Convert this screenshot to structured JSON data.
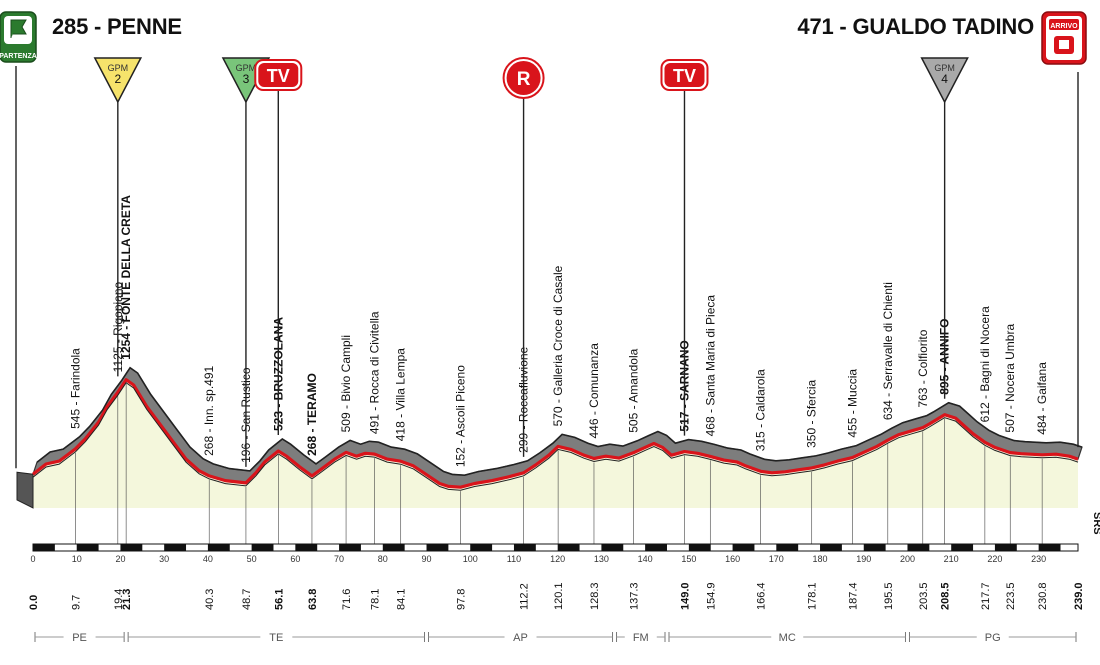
{
  "header": {
    "start_title": "285 - PENNE",
    "finish_title": "471 - GUALDO TADINO",
    "start_badge": "PARTENZA",
    "finish_badge": "ARRIVO"
  },
  "colors": {
    "road": "#d9141b",
    "profile_fill": "#f4f7dc",
    "profile_band": "#7d7d7d",
    "axis": "#111111",
    "gpm2": "#f6e36b",
    "gpm3": "#79c57a",
    "gpm4": "#a9a9a9",
    "marker_red": "#d9141b"
  },
  "markers": [
    {
      "type": "GPM",
      "label": "GPM",
      "number": "2",
      "km": 19.4,
      "icon": "gpm-triangle-yellow"
    },
    {
      "type": "GPM",
      "label": "GPM",
      "number": "3",
      "km": 48.7,
      "icon": "gpm-triangle-green"
    },
    {
      "type": "TV",
      "label": "TV",
      "km": 56.1,
      "icon": "tv-badge"
    },
    {
      "type": "R",
      "label": "R",
      "km": 112.2,
      "icon": "feed-zone-circle"
    },
    {
      "type": "TV",
      "label": "TV",
      "km": 149.0,
      "icon": "tv-badge"
    },
    {
      "type": "GPM",
      "label": "GPM",
      "number": "4",
      "km": 208.5,
      "icon": "gpm-triangle-grey"
    }
  ],
  "waypoints": [
    {
      "km": 9.7,
      "alt": 545,
      "name": "Farindola",
      "bold": false
    },
    {
      "km": 19.4,
      "alt": 1125,
      "name": "Rigopiano",
      "bold": false
    },
    {
      "km": 21.3,
      "alt": 1254,
      "name": "FONTE DELLA CRETA",
      "bold": true
    },
    {
      "km": 40.3,
      "alt": 268,
      "name": "Inn. sp.491",
      "bold": false
    },
    {
      "km": 48.7,
      "alt": 196,
      "name": "San Rustico",
      "bold": false
    },
    {
      "km": 56.1,
      "alt": 523,
      "name": "BRUZZOLANA",
      "bold": true
    },
    {
      "km": 63.8,
      "alt": 268,
      "name": "TERAMO",
      "bold": true
    },
    {
      "km": 71.6,
      "alt": 509,
      "name": "Bivio Campli",
      "bold": false
    },
    {
      "km": 78.1,
      "alt": 491,
      "name": "Rocca di Civitella",
      "bold": false
    },
    {
      "km": 84.1,
      "alt": 418,
      "name": "Villa Lempa",
      "bold": false
    },
    {
      "km": 97.8,
      "alt": 152,
      "name": "Ascoli Piceno",
      "bold": false
    },
    {
      "km": 112.2,
      "alt": 299,
      "name": "Roccafluvione",
      "bold": false
    },
    {
      "km": 120.1,
      "alt": 570,
      "name": "Galleria Croce di Casale",
      "bold": false
    },
    {
      "km": 128.3,
      "alt": 446,
      "name": "Comunanza",
      "bold": false
    },
    {
      "km": 137.3,
      "alt": 505,
      "name": "Amandola",
      "bold": false
    },
    {
      "km": 149.0,
      "alt": 517,
      "name": "SARNANO",
      "bold": true
    },
    {
      "km": 154.9,
      "alt": 468,
      "name": "Santa Maria di Pieca",
      "bold": false
    },
    {
      "km": 166.4,
      "alt": 315,
      "name": "Caldarola",
      "bold": false
    },
    {
      "km": 178.1,
      "alt": 350,
      "name": "Sfercia",
      "bold": false
    },
    {
      "km": 187.4,
      "alt": 455,
      "name": "Muccia",
      "bold": false
    },
    {
      "km": 195.5,
      "alt": 634,
      "name": "Serravalle di Chienti",
      "bold": false
    },
    {
      "km": 203.5,
      "alt": 763,
      "name": "Colfiorito",
      "bold": false
    },
    {
      "km": 208.5,
      "alt": 895,
      "name": "ANNIFO",
      "bold": true
    },
    {
      "km": 217.7,
      "alt": 612,
      "name": "Bagni di Nocera",
      "bold": false
    },
    {
      "km": 223.5,
      "alt": 507,
      "name": "Nocera Umbra",
      "bold": false
    },
    {
      "km": 230.8,
      "alt": 484,
      "name": "Gaifana",
      "bold": false
    }
  ],
  "km_labels": [
    {
      "km": 0.0,
      "text": "0.0",
      "bold": true
    },
    {
      "km": 9.7,
      "text": "9.7",
      "bold": false
    },
    {
      "km": 19.4,
      "text": "19.4",
      "bold": false
    },
    {
      "km": 21.3,
      "text": "21.3",
      "bold": true
    },
    {
      "km": 40.3,
      "text": "40.3",
      "bold": false
    },
    {
      "km": 48.7,
      "text": "48.7",
      "bold": false
    },
    {
      "km": 56.1,
      "text": "56.1",
      "bold": true
    },
    {
      "km": 63.8,
      "text": "63.8",
      "bold": true
    },
    {
      "km": 71.6,
      "text": "71.6",
      "bold": false
    },
    {
      "km": 78.1,
      "text": "78.1",
      "bold": false
    },
    {
      "km": 84.1,
      "text": "84.1",
      "bold": false
    },
    {
      "km": 97.8,
      "text": "97.8",
      "bold": false
    },
    {
      "km": 112.2,
      "text": "112.2",
      "bold": false
    },
    {
      "km": 120.1,
      "text": "120.1",
      "bold": false
    },
    {
      "km": 128.3,
      "text": "128.3",
      "bold": false
    },
    {
      "km": 137.3,
      "text": "137.3",
      "bold": false
    },
    {
      "km": 149.0,
      "text": "149.0",
      "bold": true
    },
    {
      "km": 154.9,
      "text": "154.9",
      "bold": false
    },
    {
      "km": 166.4,
      "text": "166.4",
      "bold": false
    },
    {
      "km": 178.1,
      "text": "178.1",
      "bold": false
    },
    {
      "km": 187.4,
      "text": "187.4",
      "bold": false
    },
    {
      "km": 195.5,
      "text": "195.5",
      "bold": false
    },
    {
      "km": 203.5,
      "text": "203.5",
      "bold": false
    },
    {
      "km": 208.5,
      "text": "208.5",
      "bold": true
    },
    {
      "km": 217.7,
      "text": "217.7",
      "bold": false
    },
    {
      "km": 223.5,
      "text": "223.5",
      "bold": false
    },
    {
      "km": 230.8,
      "text": "230.8",
      "bold": false
    },
    {
      "km": 239.0,
      "text": "239.0",
      "bold": true
    }
  ],
  "axis_ticks": [
    "0",
    "10",
    "20",
    "30",
    "40",
    "50",
    "60",
    "70",
    "80",
    "90",
    "100",
    "110",
    "120",
    "130",
    "140",
    "150",
    "160",
    "170",
    "180",
    "190",
    "200",
    "210",
    "220",
    "230"
  ],
  "regions": [
    {
      "code": "PE",
      "from_km": 0.0,
      "to_km": 21.3
    },
    {
      "code": "TE",
      "from_km": 21.3,
      "to_km": 90.0
    },
    {
      "code": "AP",
      "from_km": 90.0,
      "to_km": 133.0
    },
    {
      "code": "FM",
      "from_km": 133.0,
      "to_km": 145.0
    },
    {
      "code": "MC",
      "from_km": 145.0,
      "to_km": 200.0
    },
    {
      "code": "PG",
      "from_km": 200.0,
      "to_km": 239.0
    }
  ],
  "brand_mark": "SRS",
  "total_km": 239.0,
  "profile": [
    [
      0,
      285
    ],
    [
      3,
      390
    ],
    [
      6,
      420
    ],
    [
      9.7,
      545
    ],
    [
      12,
      650
    ],
    [
      15,
      820
    ],
    [
      17,
      980
    ],
    [
      19.4,
      1125
    ],
    [
      21.3,
      1254
    ],
    [
      23,
      1200
    ],
    [
      26,
      980
    ],
    [
      29,
      800
    ],
    [
      32,
      620
    ],
    [
      35,
      440
    ],
    [
      38,
      320
    ],
    [
      40.3,
      268
    ],
    [
      44,
      220
    ],
    [
      48.7,
      196
    ],
    [
      51,
      300
    ],
    [
      53,
      410
    ],
    [
      56.1,
      523
    ],
    [
      58,
      470
    ],
    [
      61,
      360
    ],
    [
      63.8,
      268
    ],
    [
      66,
      340
    ],
    [
      69,
      440
    ],
    [
      71.6,
      509
    ],
    [
      74,
      470
    ],
    [
      76,
      500
    ],
    [
      78.1,
      491
    ],
    [
      81,
      440
    ],
    [
      84.1,
      418
    ],
    [
      87,
      370
    ],
    [
      90,
      280
    ],
    [
      93,
      190
    ],
    [
      95,
      160
    ],
    [
      97.8,
      152
    ],
    [
      101,
      190
    ],
    [
      105,
      220
    ],
    [
      109,
      260
    ],
    [
      112.2,
      299
    ],
    [
      115,
      380
    ],
    [
      118,
      480
    ],
    [
      120.1,
      570
    ],
    [
      123,
      540
    ],
    [
      126,
      480
    ],
    [
      128.3,
      446
    ],
    [
      131,
      470
    ],
    [
      134,
      450
    ],
    [
      137.3,
      505
    ],
    [
      140,
      560
    ],
    [
      142,
      600
    ],
    [
      144,
      560
    ],
    [
      146,
      480
    ],
    [
      149.0,
      517
    ],
    [
      152,
      500
    ],
    [
      154.9,
      468
    ],
    [
      158,
      430
    ],
    [
      161,
      410
    ],
    [
      163,
      370
    ],
    [
      166.4,
      315
    ],
    [
      169,
      300
    ],
    [
      172,
      310
    ],
    [
      175,
      330
    ],
    [
      178.1,
      350
    ],
    [
      181,
      380
    ],
    [
      184,
      420
    ],
    [
      187.4,
      455
    ],
    [
      190,
      510
    ],
    [
      193,
      570
    ],
    [
      195.5,
      634
    ],
    [
      198,
      690
    ],
    [
      201,
      730
    ],
    [
      203.5,
      763
    ],
    [
      205,
      800
    ],
    [
      208.5,
      895
    ],
    [
      211,
      860
    ],
    [
      213,
      780
    ],
    [
      215,
      700
    ],
    [
      217.7,
      612
    ],
    [
      220,
      560
    ],
    [
      223.5,
      507
    ],
    [
      226,
      495
    ],
    [
      230.8,
      484
    ],
    [
      234,
      490
    ],
    [
      237,
      470
    ],
    [
      239,
      440
    ]
  ]
}
